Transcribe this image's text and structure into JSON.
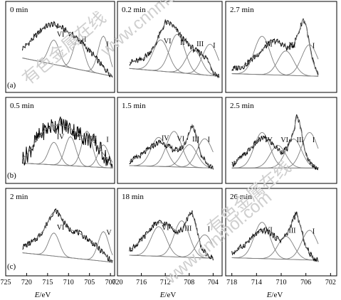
{
  "colors": {
    "frame": "#000000",
    "curve": "#000000",
    "fit": "#7f7f7f",
    "watermark": "#d3d3d3"
  },
  "row_labels": [
    "(a)",
    "(b)",
    "(c)"
  ],
  "x_axis_label": {
    "italic": "E",
    "rest": "/eV"
  },
  "watermarks": [
    "有色金属在线",
    "www.cnnmol.com"
  ],
  "chart_data": [
    {
      "type": "line",
      "time": "0 min",
      "peak_labels": [
        "VI",
        "II",
        "I"
      ],
      "x": [
        721,
        720,
        718,
        716,
        714,
        712,
        710,
        708,
        706,
        704,
        702,
        700,
        699.5
      ],
      "series": [
        {
          "values": [
            0.55,
            0.6,
            0.72,
            0.85,
            0.9,
            0.86,
            0.78,
            0.7,
            0.58,
            0.45,
            0.3,
            0.18,
            0.15
          ]
        }
      ]
    },
    {
      "type": "line",
      "time": "0.2 min",
      "peak_labels": [
        "VI",
        "II",
        "III",
        "I"
      ],
      "x": [
        718,
        716,
        714,
        712,
        711,
        710,
        709,
        708,
        707,
        706,
        705,
        704,
        703
      ],
      "series": [
        {
          "values": [
            0.35,
            0.38,
            0.55,
            0.92,
            0.9,
            0.8,
            0.68,
            0.6,
            0.52,
            0.48,
            0.4,
            0.22,
            0.15
          ]
        }
      ]
    },
    {
      "type": "line",
      "time": "2.7 min",
      "peak_labels": [
        "VI",
        "III",
        "I"
      ],
      "x": [
        718,
        716,
        714,
        712,
        711,
        710,
        709,
        708,
        707,
        706.5,
        706,
        705,
        704
      ],
      "series": [
        {
          "values": [
            0.25,
            0.3,
            0.45,
            0.62,
            0.66,
            0.62,
            0.55,
            0.6,
            0.82,
            0.97,
            0.9,
            0.4,
            0.15
          ]
        }
      ]
    },
    {
      "type": "line",
      "time": "0.5 min",
      "peak_labels": [
        "IV",
        "VI",
        "III",
        "I"
      ],
      "x": [
        721,
        720,
        718,
        716,
        714,
        712,
        710,
        708,
        706,
        704,
        702,
        700,
        699.5
      ],
      "series": [
        {
          "values": [
            0.3,
            0.35,
            0.55,
            0.72,
            0.8,
            0.82,
            0.78,
            0.7,
            0.62,
            0.55,
            0.4,
            0.2,
            0.15
          ]
        }
      ]
    },
    {
      "type": "line",
      "time": "1.5 min",
      "peak_labels": [
        "IV",
        "VI",
        "III",
        "I"
      ],
      "x": [
        718,
        716,
        714,
        713,
        712,
        711,
        710,
        709,
        708,
        707.5,
        707,
        706,
        705,
        704
      ],
      "series": [
        {
          "values": [
            0.25,
            0.35,
            0.5,
            0.55,
            0.52,
            0.45,
            0.42,
            0.48,
            0.68,
            0.82,
            0.72,
            0.35,
            0.22,
            0.15
          ]
        }
      ]
    },
    {
      "type": "line",
      "time": "2.5 min",
      "peak_labels": [
        "IV",
        "VI",
        "III",
        "I"
      ],
      "x": [
        718,
        716,
        714,
        713,
        712,
        711,
        710,
        709,
        708,
        707.5,
        707,
        706,
        705,
        704
      ],
      "series": [
        {
          "values": [
            0.2,
            0.35,
            0.55,
            0.62,
            0.58,
            0.48,
            0.4,
            0.45,
            0.7,
            0.95,
            0.85,
            0.35,
            0.2,
            0.15
          ]
        }
      ]
    },
    {
      "type": "line",
      "time": "2 min",
      "peak_labels": [
        "VI",
        "V"
      ],
      "x": [
        721,
        720,
        718,
        716,
        714,
        713,
        712,
        710,
        708,
        706,
        704,
        702,
        700,
        699.5
      ],
      "series": [
        {
          "values": [
            0.35,
            0.38,
            0.45,
            0.6,
            0.85,
            0.9,
            0.82,
            0.62,
            0.58,
            0.5,
            0.4,
            0.28,
            0.15,
            0.12
          ]
        }
      ]
    },
    {
      "type": "line",
      "time": "18 min",
      "peak_labels": [
        "VI",
        "III",
        "I"
      ],
      "x": [
        718,
        716,
        714,
        713,
        712,
        711,
        710,
        709,
        708,
        707.5,
        707,
        706,
        705,
        704
      ],
      "series": [
        {
          "values": [
            0.3,
            0.45,
            0.68,
            0.72,
            0.7,
            0.65,
            0.58,
            0.62,
            0.85,
            0.88,
            0.7,
            0.35,
            0.22,
            0.18
          ]
        }
      ]
    },
    {
      "type": "line",
      "time": "26 min",
      "peak_labels": [
        "VI",
        "III",
        "I"
      ],
      "x": [
        718,
        716,
        714,
        713,
        712,
        711,
        710,
        709,
        708,
        707.5,
        707,
        706,
        705,
        704
      ],
      "series": [
        {
          "values": [
            0.25,
            0.38,
            0.55,
            0.6,
            0.58,
            0.5,
            0.45,
            0.55,
            0.78,
            0.85,
            0.7,
            0.35,
            0.2,
            0.15
          ]
        }
      ]
    }
  ],
  "axes": [
    {
      "ticks": [
        "725",
        "720",
        "715",
        "710",
        "705",
        "700"
      ],
      "range": [
        725,
        699
      ]
    },
    {
      "ticks": [
        "720",
        "716",
        "712",
        "708",
        "704"
      ],
      "range": [
        720,
        702.5
      ]
    },
    {
      "ticks": [
        "718",
        "714",
        "710",
        "706",
        "702"
      ],
      "range": [
        719,
        701
      ]
    }
  ]
}
